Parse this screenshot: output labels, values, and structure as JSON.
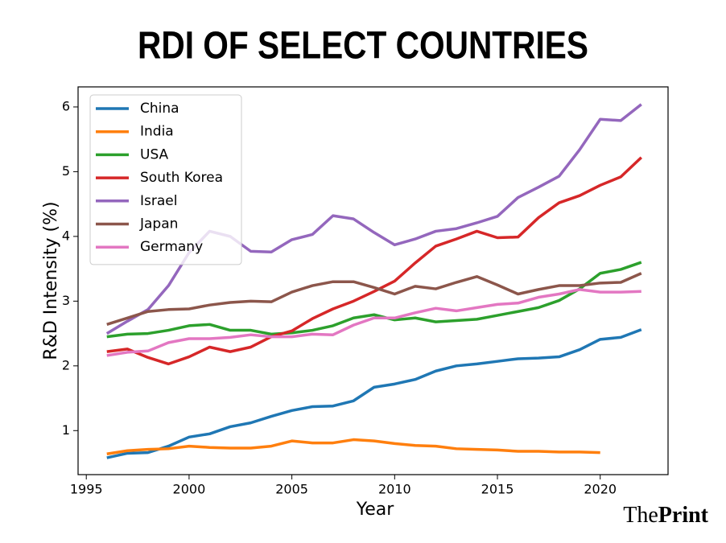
{
  "chart_data": {
    "type": "line",
    "title": "RDI OF SELECT COUNTRIES",
    "x_label": "Year",
    "y_label": "R&D Intensity (%)",
    "x": [
      1996,
      1997,
      1998,
      1999,
      2000,
      2001,
      2002,
      2003,
      2004,
      2005,
      2006,
      2007,
      2008,
      2009,
      2010,
      2011,
      2012,
      2013,
      2014,
      2015,
      2016,
      2017,
      2018,
      2019,
      2020,
      2021,
      2022
    ],
    "series": [
      {
        "name": "China",
        "color": "#1f77b4",
        "values": [
          0.58,
          0.65,
          0.66,
          0.76,
          0.9,
          0.95,
          1.06,
          1.12,
          1.22,
          1.31,
          1.37,
          1.38,
          1.46,
          1.67,
          1.72,
          1.79,
          1.92,
          2.0,
          2.03,
          2.07,
          2.11,
          2.12,
          2.14,
          2.25,
          2.41,
          2.44,
          2.56
        ]
      },
      {
        "name": "India",
        "color": "#ff7f0e",
        "values": [
          0.64,
          0.69,
          0.71,
          0.72,
          0.76,
          0.74,
          0.73,
          0.73,
          0.76,
          0.84,
          0.81,
          0.81,
          0.86,
          0.84,
          0.8,
          0.77,
          0.76,
          0.72,
          0.71,
          0.7,
          0.68,
          0.68,
          0.67,
          0.67,
          0.66,
          null,
          null
        ]
      },
      {
        "name": "USA",
        "color": "#2ca02c",
        "values": [
          2.45,
          2.49,
          2.5,
          2.55,
          2.62,
          2.64,
          2.55,
          2.55,
          2.49,
          2.51,
          2.55,
          2.62,
          2.74,
          2.79,
          2.71,
          2.74,
          2.68,
          2.7,
          2.72,
          2.78,
          2.84,
          2.9,
          3.01,
          3.19,
          3.43,
          3.49,
          3.6
        ]
      },
      {
        "name": "South Korea",
        "color": "#d62728",
        "values": [
          2.22,
          2.26,
          2.13,
          2.03,
          2.14,
          2.29,
          2.22,
          2.29,
          2.45,
          2.54,
          2.73,
          2.88,
          3.0,
          3.15,
          3.31,
          3.59,
          3.85,
          3.96,
          4.08,
          3.98,
          3.99,
          4.29,
          4.52,
          4.63,
          4.79,
          4.92,
          5.22
        ]
      },
      {
        "name": "Israel",
        "color": "#9467bd",
        "values": [
          2.5,
          2.69,
          2.87,
          3.24,
          3.75,
          4.08,
          4.0,
          3.77,
          3.76,
          3.95,
          4.03,
          4.32,
          4.27,
          4.06,
          3.87,
          3.96,
          4.08,
          4.12,
          4.21,
          4.31,
          4.6,
          4.76,
          4.93,
          5.34,
          5.81,
          5.79,
          6.04
        ]
      },
      {
        "name": "Japan",
        "color": "#8c564b",
        "values": [
          2.64,
          2.74,
          2.84,
          2.87,
          2.88,
          2.94,
          2.98,
          3.0,
          2.99,
          3.14,
          3.24,
          3.3,
          3.3,
          3.21,
          3.11,
          3.23,
          3.19,
          3.29,
          3.38,
          3.25,
          3.11,
          3.18,
          3.24,
          3.24,
          3.28,
          3.29,
          3.43
        ]
      },
      {
        "name": "Germany",
        "color": "#e377c2",
        "values": [
          2.16,
          2.21,
          2.23,
          2.36,
          2.42,
          2.42,
          2.44,
          2.48,
          2.45,
          2.45,
          2.49,
          2.48,
          2.63,
          2.74,
          2.74,
          2.82,
          2.89,
          2.85,
          2.9,
          2.95,
          2.97,
          3.06,
          3.11,
          3.18,
          3.14,
          3.14,
          3.15
        ]
      }
    ],
    "xlim": [
      1994.6,
      2023.3
    ],
    "xticks": [
      1995,
      2000,
      2005,
      2010,
      2015,
      2020
    ],
    "ylim": [
      0.32,
      6.31
    ],
    "yticks": [
      1,
      2,
      3,
      4,
      5,
      6
    ],
    "grid": false,
    "legend": "upper left"
  },
  "logo": {
    "light": "The",
    "bold": "Print"
  }
}
